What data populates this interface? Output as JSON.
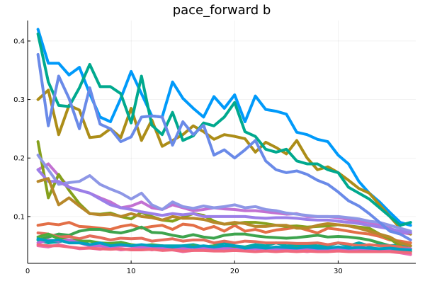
{
  "chart_data": {
    "type": "line",
    "title": "pace_forward b",
    "xlabel": "",
    "ylabel": "",
    "xlim": [
      0,
      37.5
    ],
    "ylim": [
      0.02,
      0.435
    ],
    "xticks": [
      0,
      10,
      20,
      30
    ],
    "xtick_labels": [
      "0",
      "10",
      "20",
      "30"
    ],
    "yticks": [
      0.1,
      0.2,
      0.3,
      0.4
    ],
    "ytick_labels": [
      "0.1",
      "0.2",
      "0.3",
      "0.4"
    ],
    "grid": true,
    "legend": "none",
    "x": [
      1,
      2,
      3,
      4,
      5,
      6,
      7,
      8,
      9,
      10,
      11,
      12,
      13,
      14,
      15,
      16,
      17,
      18,
      19,
      20,
      21,
      22,
      23,
      24,
      25,
      26,
      27,
      28,
      29,
      30,
      31,
      32,
      33,
      34,
      35,
      36,
      37
    ],
    "series": [
      {
        "color": "#009AFA",
        "values": [
          0.42,
          0.362,
          0.362,
          0.342,
          0.355,
          0.31,
          0.27,
          0.262,
          0.302,
          0.348,
          0.31,
          0.272,
          0.27,
          0.33,
          0.302,
          0.285,
          0.27,
          0.305,
          0.285,
          0.308,
          0.262,
          0.306,
          0.283,
          0.28,
          0.275,
          0.244,
          0.24,
          0.232,
          0.228,
          0.205,
          0.19,
          0.16,
          0.14,
          0.125,
          0.107,
          0.09,
          0.085
        ]
      },
      {
        "color": "#E36F47",
        "values": [
          0.085,
          0.088,
          0.086,
          0.09,
          0.083,
          0.082,
          0.08,
          0.078,
          0.083,
          0.086,
          0.08,
          0.083,
          0.085,
          0.078,
          0.087,
          0.085,
          0.078,
          0.083,
          0.075,
          0.085,
          0.075,
          0.078,
          0.073,
          0.077,
          0.079,
          0.082,
          0.077,
          0.072,
          0.08,
          0.078,
          0.075,
          0.072,
          0.07,
          0.066,
          0.06,
          0.058,
          0.055
        ]
      },
      {
        "color": "#3EA44E",
        "values": [
          0.06,
          0.065,
          0.07,
          0.068,
          0.075,
          0.078,
          0.078,
          0.074,
          0.072,
          0.076,
          0.082,
          0.073,
          0.072,
          0.068,
          0.065,
          0.069,
          0.065,
          0.063,
          0.068,
          0.07,
          0.07,
          0.067,
          0.065,
          0.064,
          0.063,
          0.064,
          0.066,
          0.068,
          0.065,
          0.066,
          0.065,
          0.063,
          0.06,
          0.055,
          0.05,
          0.048,
          0.045
        ]
      },
      {
        "color": "#C271D2",
        "values": [
          0.18,
          0.19,
          0.17,
          0.15,
          0.145,
          0.14,
          0.132,
          0.125,
          0.115,
          0.118,
          0.125,
          0.115,
          0.112,
          0.12,
          0.115,
          0.11,
          0.112,
          0.115,
          0.113,
          0.112,
          0.11,
          0.11,
          0.108,
          0.106,
          0.104,
          0.105,
          0.1,
          0.1,
          0.1,
          0.098,
          0.095,
          0.092,
          0.09,
          0.085,
          0.08,
          0.073,
          0.07
        ]
      },
      {
        "color": "#AC8D18",
        "values": [
          0.3,
          0.316,
          0.24,
          0.29,
          0.282,
          0.235,
          0.237,
          0.25,
          0.235,
          0.285,
          0.23,
          0.265,
          0.22,
          0.23,
          0.24,
          0.255,
          0.245,
          0.232,
          0.24,
          0.237,
          0.233,
          0.21,
          0.227,
          0.218,
          0.207,
          0.23,
          0.2,
          0.18,
          0.185,
          0.175,
          0.162,
          0.148,
          0.14,
          0.12,
          0.1,
          0.08,
          0.07
        ]
      },
      {
        "color": "#00A9AD",
        "values": [
          0.06,
          0.055,
          0.057,
          0.06,
          0.058,
          0.052,
          0.05,
          0.053,
          0.055,
          0.05,
          0.048,
          0.05,
          0.05,
          0.05,
          0.05,
          0.052,
          0.048,
          0.05,
          0.055,
          0.05,
          0.048,
          0.052,
          0.05,
          0.055,
          0.05,
          0.051,
          0.052,
          0.05,
          0.05,
          0.055,
          0.05,
          0.055,
          0.05,
          0.052,
          0.05,
          0.052,
          0.05
        ]
      },
      {
        "color": "#EC6DAE",
        "values": [
          0.05,
          0.048,
          0.052,
          0.048,
          0.045,
          0.046,
          0.044,
          0.047,
          0.043,
          0.045,
          0.047,
          0.043,
          0.046,
          0.043,
          0.04,
          0.042,
          0.045,
          0.042,
          0.041,
          0.045,
          0.042,
          0.04,
          0.042,
          0.04,
          0.043,
          0.042,
          0.04,
          0.042,
          0.041,
          0.043,
          0.041,
          0.042,
          0.04,
          0.042,
          0.04,
          0.038,
          0.035
        ]
      },
      {
        "color": "#85A01C",
        "values": [
          0.228,
          0.132,
          0.172,
          0.145,
          0.122,
          0.105,
          0.104,
          0.106,
          0.1,
          0.096,
          0.107,
          0.1,
          0.094,
          0.092,
          0.099,
          0.105,
          0.102,
          0.092,
          0.087,
          0.088,
          0.09,
          0.09,
          0.088,
          0.085,
          0.083,
          0.084,
          0.082,
          0.083,
          0.084,
          0.086,
          0.084,
          0.082,
          0.08,
          0.07,
          0.062,
          0.05,
          0.04
        ]
      },
      {
        "color": "#00A98E",
        "values": [
          0.412,
          0.33,
          0.29,
          0.288,
          0.32,
          0.36,
          0.322,
          0.322,
          0.31,
          0.26,
          0.34,
          0.256,
          0.24,
          0.278,
          0.23,
          0.238,
          0.26,
          0.255,
          0.27,
          0.295,
          0.245,
          0.237,
          0.215,
          0.21,
          0.215,
          0.195,
          0.19,
          0.19,
          0.18,
          0.175,
          0.15,
          0.14,
          0.13,
          0.115,
          0.1,
          0.085,
          0.09
        ]
      },
      {
        "color": "#8E97E6",
        "values": [
          0.205,
          0.18,
          0.155,
          0.158,
          0.16,
          0.17,
          0.155,
          0.147,
          0.14,
          0.13,
          0.14,
          0.12,
          0.112,
          0.125,
          0.117,
          0.114,
          0.118,
          0.115,
          0.117,
          0.12,
          0.115,
          0.117,
          0.112,
          0.11,
          0.106,
          0.104,
          0.102,
          0.1,
          0.1,
          0.1,
          0.098,
          0.096,
          0.092,
          0.09,
          0.085,
          0.08,
          0.075
        ]
      },
      {
        "color": "#9B7FE8",
        "values": [
          0.18,
          0.16,
          0.16,
          0.15,
          0.145,
          0.14,
          0.13,
          0.12,
          0.115,
          0.112,
          0.108,
          0.105,
          0.102,
          0.105,
          0.103,
          0.105,
          0.1,
          0.1,
          0.1,
          0.1,
          0.1,
          0.098,
          0.097,
          0.098,
          0.098,
          0.097,
          0.095,
          0.094,
          0.094,
          0.092,
          0.09,
          0.088,
          0.085,
          0.082,
          0.079,
          0.075,
          0.072
        ]
      },
      {
        "color": "#E46D5C",
        "values": [
          0.072,
          0.07,
          0.065,
          0.066,
          0.062,
          0.067,
          0.064,
          0.06,
          0.063,
          0.062,
          0.063,
          0.058,
          0.06,
          0.062,
          0.058,
          0.06,
          0.06,
          0.055,
          0.058,
          0.055,
          0.058,
          0.057,
          0.055,
          0.055,
          0.055,
          0.054,
          0.054,
          0.055,
          0.052,
          0.055,
          0.053,
          0.05,
          0.052,
          0.05,
          0.05,
          0.048,
          0.045
        ]
      },
      {
        "color": "#4EAC3A",
        "values": [
          0.065,
          0.07,
          0.062,
          0.06,
          0.058,
          0.058,
          0.055,
          0.054,
          0.056,
          0.052,
          0.05,
          0.052,
          0.05,
          0.048,
          0.048,
          0.05,
          0.048,
          0.05,
          0.048,
          0.046,
          0.047,
          0.048,
          0.046,
          0.047,
          0.046,
          0.047,
          0.046,
          0.045,
          0.046,
          0.045,
          0.044,
          0.045,
          0.044,
          0.043,
          0.042,
          0.042,
          0.04
        ]
      },
      {
        "color": "#BE68D6",
        "values": [
          0.055,
          0.06,
          0.058,
          0.06,
          0.055,
          0.05,
          0.05,
          0.048,
          0.05,
          0.05,
          0.048,
          0.048,
          0.046,
          0.047,
          0.045,
          0.047,
          0.046,
          0.045,
          0.046,
          0.044,
          0.045,
          0.045,
          0.044,
          0.045,
          0.044,
          0.046,
          0.044,
          0.045,
          0.044,
          0.045,
          0.044,
          0.045,
          0.045,
          0.044,
          0.045,
          0.044,
          0.045
        ]
      },
      {
        "color": "#B7882A",
        "values": [
          0.16,
          0.165,
          0.12,
          0.132,
          0.118,
          0.105,
          0.103,
          0.104,
          0.1,
          0.105,
          0.1,
          0.098,
          0.094,
          0.1,
          0.097,
          0.097,
          0.095,
          0.09,
          0.087,
          0.09,
          0.088,
          0.083,
          0.083,
          0.085,
          0.085,
          0.08,
          0.08,
          0.085,
          0.088,
          0.086,
          0.084,
          0.08,
          0.075,
          0.07,
          0.065,
          0.055,
          0.05
        ]
      },
      {
        "color": "#00A0C2",
        "values": [
          0.062,
          0.058,
          0.06,
          0.055,
          0.055,
          0.052,
          0.055,
          0.05,
          0.052,
          0.05,
          0.052,
          0.05,
          0.05,
          0.048,
          0.05,
          0.048,
          0.05,
          0.048,
          0.05,
          0.05,
          0.046,
          0.048,
          0.046,
          0.048,
          0.047,
          0.046,
          0.048,
          0.046,
          0.046,
          0.048,
          0.046,
          0.047,
          0.046,
          0.045,
          0.046,
          0.044,
          0.043
        ]
      },
      {
        "color": "#F0687D",
        "values": [
          0.052,
          0.05,
          0.05,
          0.048,
          0.046,
          0.046,
          0.045,
          0.044,
          0.045,
          0.043,
          0.043,
          0.044,
          0.042,
          0.043,
          0.041,
          0.042,
          0.042,
          0.041,
          0.041,
          0.042,
          0.041,
          0.04,
          0.041,
          0.04,
          0.041,
          0.04,
          0.041,
          0.04,
          0.04,
          0.041,
          0.04,
          0.04,
          0.04,
          0.04,
          0.04,
          0.039,
          0.038
        ]
      },
      {
        "color": "#6A8AE8",
        "values": [
          0.377,
          0.255,
          0.34,
          0.302,
          0.25,
          0.32,
          0.258,
          0.25,
          0.228,
          0.236,
          0.27,
          0.272,
          0.27,
          0.222,
          0.262,
          0.24,
          0.256,
          0.205,
          0.214,
          0.2,
          0.214,
          0.23,
          0.195,
          0.18,
          0.175,
          0.178,
          0.172,
          0.162,
          0.155,
          0.142,
          0.127,
          0.118,
          0.105,
          0.09,
          0.075,
          0.07,
          0.06
        ]
      }
    ]
  }
}
